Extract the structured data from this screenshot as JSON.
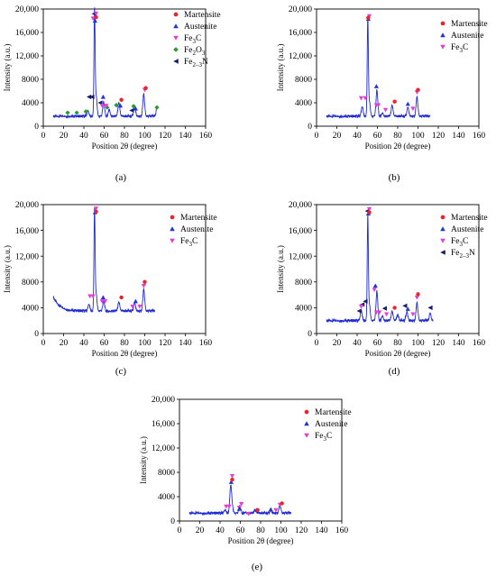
{
  "figure": {
    "panel_labels": [
      "(a)",
      "(b)",
      "(c)",
      "(d)",
      "(e)"
    ]
  },
  "colors": {
    "curve": "#1f2ad6",
    "Martensite": "#e8262a",
    "Austenite": "#1f35d6",
    "Fe3C": "#e83ad8",
    "Fe2O3": "#2a9a2a",
    "Fe2-3N": "#1a1a6a",
    "axis": "#000000"
  },
  "chart_data": [
    {
      "type": "line",
      "label": "(a)",
      "xlabel": "Position 2θ (degree)",
      "ylabel": "Intensity (a.u.)",
      "xlim": [
        0,
        160
      ],
      "ylim": [
        0,
        20000
      ],
      "xticks": [
        0,
        20,
        40,
        60,
        80,
        100,
        120,
        140,
        160
      ],
      "yticks": [
        0,
        4000,
        8000,
        12000,
        16000,
        20000
      ],
      "ytick_labels": [
        "0",
        "4000",
        "8000",
        "12,000",
        "16,000",
        "20,000"
      ],
      "legend": [
        "Martensite",
        "Austenite",
        "Fe3C",
        "Fe2O3",
        "Fe2-3N"
      ],
      "baseline": 1700,
      "x_range": [
        10,
        112
      ],
      "peaks": [
        [
          44,
          900
        ],
        [
          50.5,
          17800
        ],
        [
          52,
          3500
        ],
        [
          59.5,
          2400
        ],
        [
          65,
          1200
        ],
        [
          74.5,
          2300
        ],
        [
          90,
          1800
        ],
        [
          99,
          3700
        ],
        [
          112,
          1300
        ]
      ],
      "markers": [
        {
          "phase": "Fe2O3",
          "points": [
            [
              24,
              2300
            ],
            [
              33,
              2300
            ],
            [
              42,
              2500
            ],
            [
              63,
              3200
            ],
            [
              72,
              3600
            ],
            [
              89,
              3400
            ],
            [
              112,
              3200
            ]
          ]
        },
        {
          "phase": "Fe2-3N",
          "points": [
            [
              45,
              5000
            ],
            [
              48,
              5000
            ],
            [
              50,
              19200
            ],
            [
              56,
              4000
            ],
            [
              87,
              2700
            ]
          ]
        },
        {
          "phase": "Fe3C",
          "points": [
            [
              49,
              18400
            ],
            [
              52,
              19200
            ],
            [
              58,
              3500
            ],
            [
              62,
              3500
            ],
            [
              100,
              6200
            ]
          ]
        },
        {
          "phase": "Austenite",
          "points": [
            [
              51,
              18000
            ],
            [
              59,
              5000
            ],
            [
              76,
              3500
            ],
            [
              91,
              3000
            ]
          ]
        },
        {
          "phase": "Martensite",
          "points": [
            [
              52,
              18600
            ],
            [
              77,
              4500
            ],
            [
              101,
              6500
            ]
          ]
        }
      ]
    },
    {
      "type": "line",
      "label": "(b)",
      "xlabel": "Position 2θ (degree)",
      "ylabel": "Intensity (a.u.)",
      "xlim": [
        0,
        160
      ],
      "ylim": [
        0,
        20000
      ],
      "xticks": [
        0,
        20,
        40,
        60,
        80,
        100,
        120,
        140,
        160
      ],
      "yticks": [
        0,
        4000,
        8000,
        12000,
        16000,
        20000
      ],
      "ytick_labels": [
        "0",
        "4000",
        "8000",
        "12,000",
        "16,000",
        "20,000"
      ],
      "legend": [
        "Martensite",
        "Austenite",
        "Fe3C"
      ],
      "baseline": 1700,
      "x_range": [
        10,
        112
      ],
      "peaks": [
        [
          45,
          1600
        ],
        [
          50.5,
          16500
        ],
        [
          52,
          2500
        ],
        [
          59.5,
          4400
        ],
        [
          65,
          600
        ],
        [
          74.5,
          1800
        ],
        [
          90,
          1500
        ],
        [
          99,
          3200
        ]
      ],
      "markers": [
        {
          "phase": "Fe3C",
          "points": [
            [
              44,
              4800
            ],
            [
              48,
              4800
            ],
            [
              52,
              18800
            ],
            [
              59,
              3600
            ],
            [
              61,
              3600
            ],
            [
              68,
              2800
            ],
            [
              95,
              3000
            ],
            [
              99,
              5800
            ]
          ]
        },
        {
          "phase": "Austenite",
          "points": [
            [
              51,
              18300
            ],
            [
              59,
              6800
            ],
            [
              90,
              3800
            ]
          ]
        },
        {
          "phase": "Martensite",
          "points": [
            [
              51,
              18500
            ],
            [
              77,
              4200
            ],
            [
              100,
              6200
            ]
          ]
        }
      ]
    },
    {
      "type": "line",
      "label": "(c)",
      "xlabel": "Position 2θ (degree)",
      "ylabel": "Intensity (a.u.)",
      "xlim": [
        0,
        160
      ],
      "ylim": [
        0,
        20000
      ],
      "xticks": [
        0,
        20,
        40,
        60,
        80,
        100,
        120,
        140,
        160
      ],
      "yticks": [
        0,
        4000,
        8000,
        12000,
        16000,
        20000
      ],
      "ytick_labels": [
        "0",
        "4000",
        "8000",
        "12,000",
        "16,000",
        "20,000"
      ],
      "legend": [
        "Martensite",
        "Austenite",
        "Fe3C"
      ],
      "baseline": 3500,
      "x_range": [
        10,
        110
      ],
      "peaks": [
        [
          45,
          1000
        ],
        [
          50.5,
          15500
        ],
        [
          52,
          2600
        ],
        [
          59.5,
          1600
        ],
        [
          74.5,
          1300
        ],
        [
          90,
          1200
        ],
        [
          99,
          3300
        ]
      ],
      "markers": [
        {
          "phase": "Fe3C",
          "points": [
            [
              46,
              5800
            ],
            [
              49,
              5800
            ],
            [
              52,
              19400
            ],
            [
              58,
              5000
            ],
            [
              61,
              5000
            ],
            [
              88,
              4200
            ],
            [
              95,
              4200
            ],
            [
              99,
              7400
            ]
          ]
        },
        {
          "phase": "Austenite",
          "points": [
            [
              51,
              18800
            ],
            [
              59,
              5600
            ],
            [
              91,
              5000
            ]
          ]
        },
        {
          "phase": "Martensite",
          "points": [
            [
              52,
              18900
            ],
            [
              77,
              5600
            ],
            [
              100,
              8000
            ]
          ]
        }
      ]
    },
    {
      "type": "line",
      "label": "(d)",
      "xlabel": "Position 2θ (degree)",
      "ylabel": "Intensity (a.u.)",
      "xlim": [
        0,
        160
      ],
      "ylim": [
        0,
        20000
      ],
      "xticks": [
        0,
        20,
        40,
        60,
        80,
        100,
        120,
        140,
        160
      ],
      "yticks": [
        0,
        4000,
        8000,
        12000,
        16000,
        20000
      ],
      "ytick_labels": [
        "0",
        "4000",
        "8000",
        "12,000",
        "16,000",
        "20,000"
      ],
      "legend": [
        "Martensite",
        "Austenite",
        "Fe3C",
        "Fe2-3N"
      ],
      "baseline": 2000,
      "x_range": [
        10,
        115
      ],
      "peaks": [
        [
          44,
          1600
        ],
        [
          50.5,
          15800
        ],
        [
          52,
          2500
        ],
        [
          59.5,
          4500
        ],
        [
          65,
          800
        ],
        [
          74.5,
          1400
        ],
        [
          80,
          900
        ],
        [
          89,
          1400
        ],
        [
          99,
          2700
        ],
        [
          112,
          1100
        ]
      ],
      "markers": [
        {
          "phase": "Fe2-3N",
          "points": [
            [
              42,
              3500
            ],
            [
              45,
              4500
            ],
            [
              48,
              5000
            ],
            [
              50,
              19000
            ],
            [
              67,
              3900
            ],
            [
              87,
              4300
            ],
            [
              112,
              4000
            ]
          ]
        },
        {
          "phase": "Fe3C",
          "points": [
            [
              44,
              4200
            ],
            [
              52,
              19300
            ],
            [
              57,
              6800
            ],
            [
              59,
              3300
            ],
            [
              62,
              3300
            ],
            [
              69,
              3000
            ],
            [
              95,
              3000
            ],
            [
              99,
              5600
            ]
          ]
        },
        {
          "phase": "Austenite",
          "points": [
            [
              51,
              18600
            ],
            [
              58,
              7400
            ],
            [
              90,
              3800
            ]
          ]
        },
        {
          "phase": "Martensite",
          "points": [
            [
              52,
              18800
            ],
            [
              77,
              4000
            ],
            [
              100,
              6100
            ]
          ]
        }
      ]
    },
    {
      "type": "line",
      "label": "(e)",
      "xlabel": "Position 2θ (degree)",
      "ylabel": "Intensity (a.u.)",
      "xlim": [
        0,
        160
      ],
      "ylim": [
        0,
        20000
      ],
      "xticks": [
        0,
        20,
        40,
        60,
        80,
        100,
        120,
        140,
        160
      ],
      "yticks": [
        0,
        4000,
        8000,
        12000,
        16000,
        20000
      ],
      "ytick_labels": [
        "0",
        "4000",
        "8000",
        "12,000",
        "16,000",
        "20,000"
      ],
      "legend": [
        "Martensite",
        "Austenite",
        "Fe3C"
      ],
      "baseline": 1300,
      "x_range": [
        10,
        110
      ],
      "peaks": [
        [
          45,
          500
        ],
        [
          50.5,
          4400
        ],
        [
          52,
          800
        ],
        [
          59.5,
          1100
        ],
        [
          65,
          200
        ],
        [
          74.5,
          500
        ],
        [
          90,
          400
        ],
        [
          99,
          1300
        ]
      ],
      "markers": [
        {
          "phase": "Fe3C",
          "points": [
            [
              46,
              2400
            ],
            [
              49,
              2400
            ],
            [
              52,
              7400
            ],
            [
              59,
              2200
            ],
            [
              61,
              2800
            ],
            [
              68,
              1200
            ],
            [
              95,
              1800
            ],
            [
              99,
              2700
            ]
          ]
        },
        {
          "phase": "Austenite",
          "points": [
            [
              51,
              6400
            ],
            [
              59,
              2000
            ],
            [
              76,
              1800
            ],
            [
              90,
              1900
            ]
          ]
        },
        {
          "phase": "Martensite",
          "points": [
            [
              52,
              6800
            ],
            [
              77,
              1800
            ],
            [
              101,
              2900
            ]
          ]
        }
      ]
    }
  ]
}
